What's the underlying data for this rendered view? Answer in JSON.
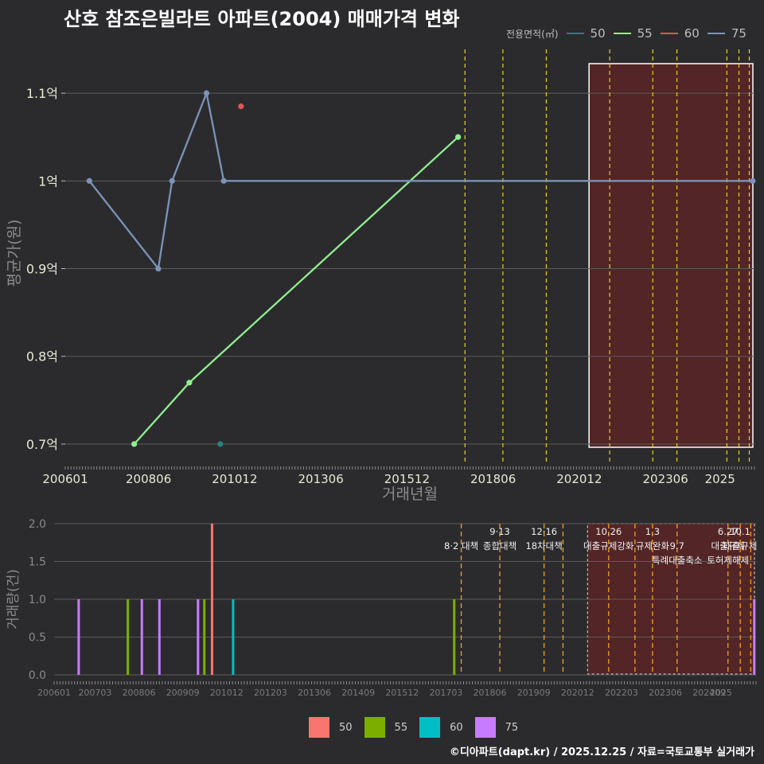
{
  "title": "산호 참조은빌라트 아파트(2004) 매매가격 변화",
  "caption": "©디아파트(dapt.kr) / 2025.12.25 / 자료=국토교통부 실거래가",
  "legend_title": "전용면적(㎡)",
  "legend_items": [
    {
      "label": "50",
      "line_color": "#2a7f7f",
      "bar_color": "#f8766d"
    },
    {
      "label": "55",
      "line_color": "#90ee90",
      "bar_color": "#7cae00"
    },
    {
      "label": "60",
      "line_color": "#e05555",
      "bar_color": "#00bfc4"
    },
    {
      "label": "75",
      "line_color": "#7b93b8",
      "bar_color": "#c77cff"
    }
  ],
  "chart_data": [
    {
      "type": "line",
      "title": "산호 참조은빌라트 아파트(2004) 매매가격 변화",
      "xlabel": "거래년월",
      "ylabel": "평균가(원)",
      "x_ticks": [
        "200601",
        "200806",
        "201012",
        "201306",
        "201512",
        "201806",
        "202012",
        "202306",
        "2025"
      ],
      "y_ticks": [
        {
          "value": 0.7,
          "label": "0.7억"
        },
        {
          "value": 0.8,
          "label": "0.8억"
        },
        {
          "value": 0.9,
          "label": "0.9억"
        },
        {
          "value": 1.0,
          "label": "1억"
        },
        {
          "value": 1.1,
          "label": "1.1억"
        }
      ],
      "ylim": [
        0.68,
        1.15
      ],
      "series": [
        {
          "name": "50",
          "points": [
            {
              "x": 2010.5,
              "y": 0.7
            }
          ]
        },
        {
          "name": "55",
          "points": [
            {
              "x": 2008.0,
              "y": 0.7
            },
            {
              "x": 2009.6,
              "y": 0.77
            },
            {
              "x": 2017.4,
              "y": 1.05
            }
          ]
        },
        {
          "name": "60",
          "points": [
            {
              "x": 2011.1,
              "y": 1.085
            }
          ]
        },
        {
          "name": "75",
          "points": [
            {
              "x": 2006.7,
              "y": 1.0
            },
            {
              "x": 2008.7,
              "y": 0.9
            },
            {
              "x": 2009.1,
              "y": 1.0
            },
            {
              "x": 2010.1,
              "y": 1.1
            },
            {
              "x": 2010.6,
              "y": 1.0
            },
            {
              "x": 2025.95,
              "y": 1.0
            }
          ]
        }
      ],
      "policy_lines": [
        2017.6,
        2018.7,
        2019.96,
        2021.8,
        2023.05,
        2023.75,
        2025.2,
        2025.55,
        2025.85
      ],
      "highlight_range": [
        2021.2,
        2026.0
      ]
    },
    {
      "type": "bar",
      "xlabel": "",
      "ylabel": "거래량(건)",
      "x_ticks": [
        "200601",
        "200703",
        "200806",
        "200909",
        "201012",
        "201203",
        "201306",
        "201409",
        "201512",
        "201703",
        "201806",
        "201909",
        "202012",
        "202203",
        "202306",
        "202409",
        "2025"
      ],
      "y_ticks": [
        {
          "value": 0,
          "label": "0.0"
        },
        {
          "value": 0.5,
          "label": "0.5"
        },
        {
          "value": 1,
          "label": "1.0"
        },
        {
          "value": 1.5,
          "label": "1.5"
        },
        {
          "value": 2,
          "label": "2.0"
        }
      ],
      "ylim": [
        0,
        2
      ],
      "bars": [
        {
          "x": 2006.7,
          "series": "75",
          "value": 1
        },
        {
          "x": 2008.1,
          "series": "55",
          "value": 1
        },
        {
          "x": 2008.5,
          "series": "75",
          "value": 1
        },
        {
          "x": 2009.0,
          "series": "75",
          "value": 1
        },
        {
          "x": 2010.1,
          "series": "75",
          "value": 1
        },
        {
          "x": 2010.28,
          "series": "55",
          "value": 1
        },
        {
          "x": 2010.5,
          "series": "50",
          "value": 2
        },
        {
          "x": 2011.1,
          "series": "60",
          "value": 1
        },
        {
          "x": 2017.4,
          "series": "55",
          "value": 1
        },
        {
          "x": 2025.95,
          "series": "75",
          "value": 1
        }
      ],
      "policy_lines": [
        2017.6,
        2018.7,
        2019.96,
        2020.5,
        2021.8,
        2022.55,
        2023.05,
        2023.75,
        2025.2,
        2025.55,
        2025.85
      ],
      "highlight_range": [
        2021.2,
        2026.0
      ],
      "annotations": [
        {
          "x": 2017.6,
          "row": 1,
          "text": "8·2 대책"
        },
        {
          "x": 2018.7,
          "row": 0,
          "text": "9·13"
        },
        {
          "x": 2018.7,
          "row": 1,
          "text": "종합대책"
        },
        {
          "x": 2019.96,
          "row": 0,
          "text": "12·16"
        },
        {
          "x": 2019.96,
          "row": 1,
          "text": "18차대책"
        },
        {
          "x": 2021.8,
          "row": 0,
          "text": "10.26"
        },
        {
          "x": 2021.8,
          "row": 1,
          "text": "대출규제강화"
        },
        {
          "x": 2023.05,
          "row": 0,
          "text": "1.3"
        },
        {
          "x": 2023.05,
          "row": 1,
          "text": "규제완화"
        },
        {
          "x": 2023.75,
          "row": 1,
          "text": "9.7"
        },
        {
          "x": 2023.75,
          "row": 2,
          "text": "특례대출축소"
        },
        {
          "x": 2025.2,
          "row": 0,
          "text": "6.27"
        },
        {
          "x": 2025.2,
          "row": 1,
          "text": "대출규제"
        },
        {
          "x": 2025.2,
          "row": 2,
          "text": "토허제해제"
        },
        {
          "x": 2025.55,
          "row": 0,
          "text": "10.1"
        },
        {
          "x": 2025.55,
          "row": 1,
          "text": "대출규제"
        }
      ]
    }
  ]
}
